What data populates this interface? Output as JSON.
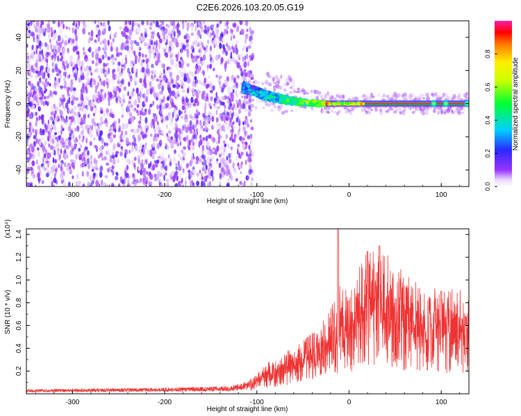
{
  "title": "C2E6.2026.103.20.05.G19",
  "chart_data": [
    {
      "type": "heatmap",
      "xlabel": "Height of straight line (km)",
      "ylabel": "Frequency (Hz)",
      "xlim": [
        -350,
        130
      ],
      "ylim": [
        -50,
        50
      ],
      "x_ticks": [
        -300,
        -200,
        -100,
        0,
        100
      ],
      "x_tick_labels": [
        "-300",
        "-200",
        "-100",
        "0",
        "100"
      ],
      "y_ticks": [
        -40,
        -20,
        0,
        20,
        40
      ],
      "y_tick_labels": [
        "-40",
        "-20",
        "0",
        "20",
        "40"
      ],
      "grid": false,
      "colorbar": {
        "label": "Normalized spectral amplitude",
        "range": [
          0,
          1
        ],
        "ticks": [
          0,
          0.2,
          0.4,
          0.6,
          0.8
        ],
        "tick_labels": [
          "0.0",
          "0.2",
          "0.4",
          "0.6",
          "0.8"
        ],
        "colormap": "rainbow"
      },
      "features": {
        "noise_region_x": [
          -350,
          -110
        ],
        "noise_amplitude": [
          0.05,
          0.2
        ],
        "signal_onset_x": -115,
        "signal_start_freq": 10,
        "signal_stable_x": -20,
        "signal_stable_freq": 0,
        "signal_peak_amplitude": 1.0
      }
    },
    {
      "type": "line",
      "xlabel": "Height of straight line (km)",
      "ylabel": "SNR (10 * v/v)",
      "multiplier": "(x10⁴)",
      "xlim": [
        -350,
        130
      ],
      "ylim": [
        0,
        1.45
      ],
      "x_ticks": [
        -300,
        -200,
        -100,
        0,
        100
      ],
      "x_tick_labels": [
        "-300",
        "-200",
        "-100",
        "0",
        "100"
      ],
      "y_ticks": [
        0.2,
        0.4,
        0.6,
        0.8,
        1.0,
        1.2,
        1.4
      ],
      "y_tick_labels": [
        "0.2",
        "0.4",
        "0.6",
        "0.8",
        "1.0",
        "1.2",
        "1.4"
      ],
      "grid": false,
      "series": [
        {
          "color": "#ee3333",
          "envelope_x": [
            -350,
            -200,
            -130,
            -110,
            -100,
            -80,
            -60,
            -40,
            -20,
            -10,
            0,
            10,
            20,
            30,
            40,
            60,
            80,
            100,
            120,
            130
          ],
          "envelope_y": [
            0.03,
            0.04,
            0.05,
            0.08,
            0.15,
            0.25,
            0.32,
            0.42,
            0.58,
            0.75,
            0.7,
            0.85,
            1.0,
            1.02,
            0.95,
            0.82,
            0.75,
            0.7,
            0.72,
            0.68
          ],
          "peaks_x": [
            -12,
            20,
            33,
            100
          ],
          "peaks_y": [
            1.45,
            1.25,
            1.3,
            0.9
          ]
        }
      ]
    }
  ]
}
